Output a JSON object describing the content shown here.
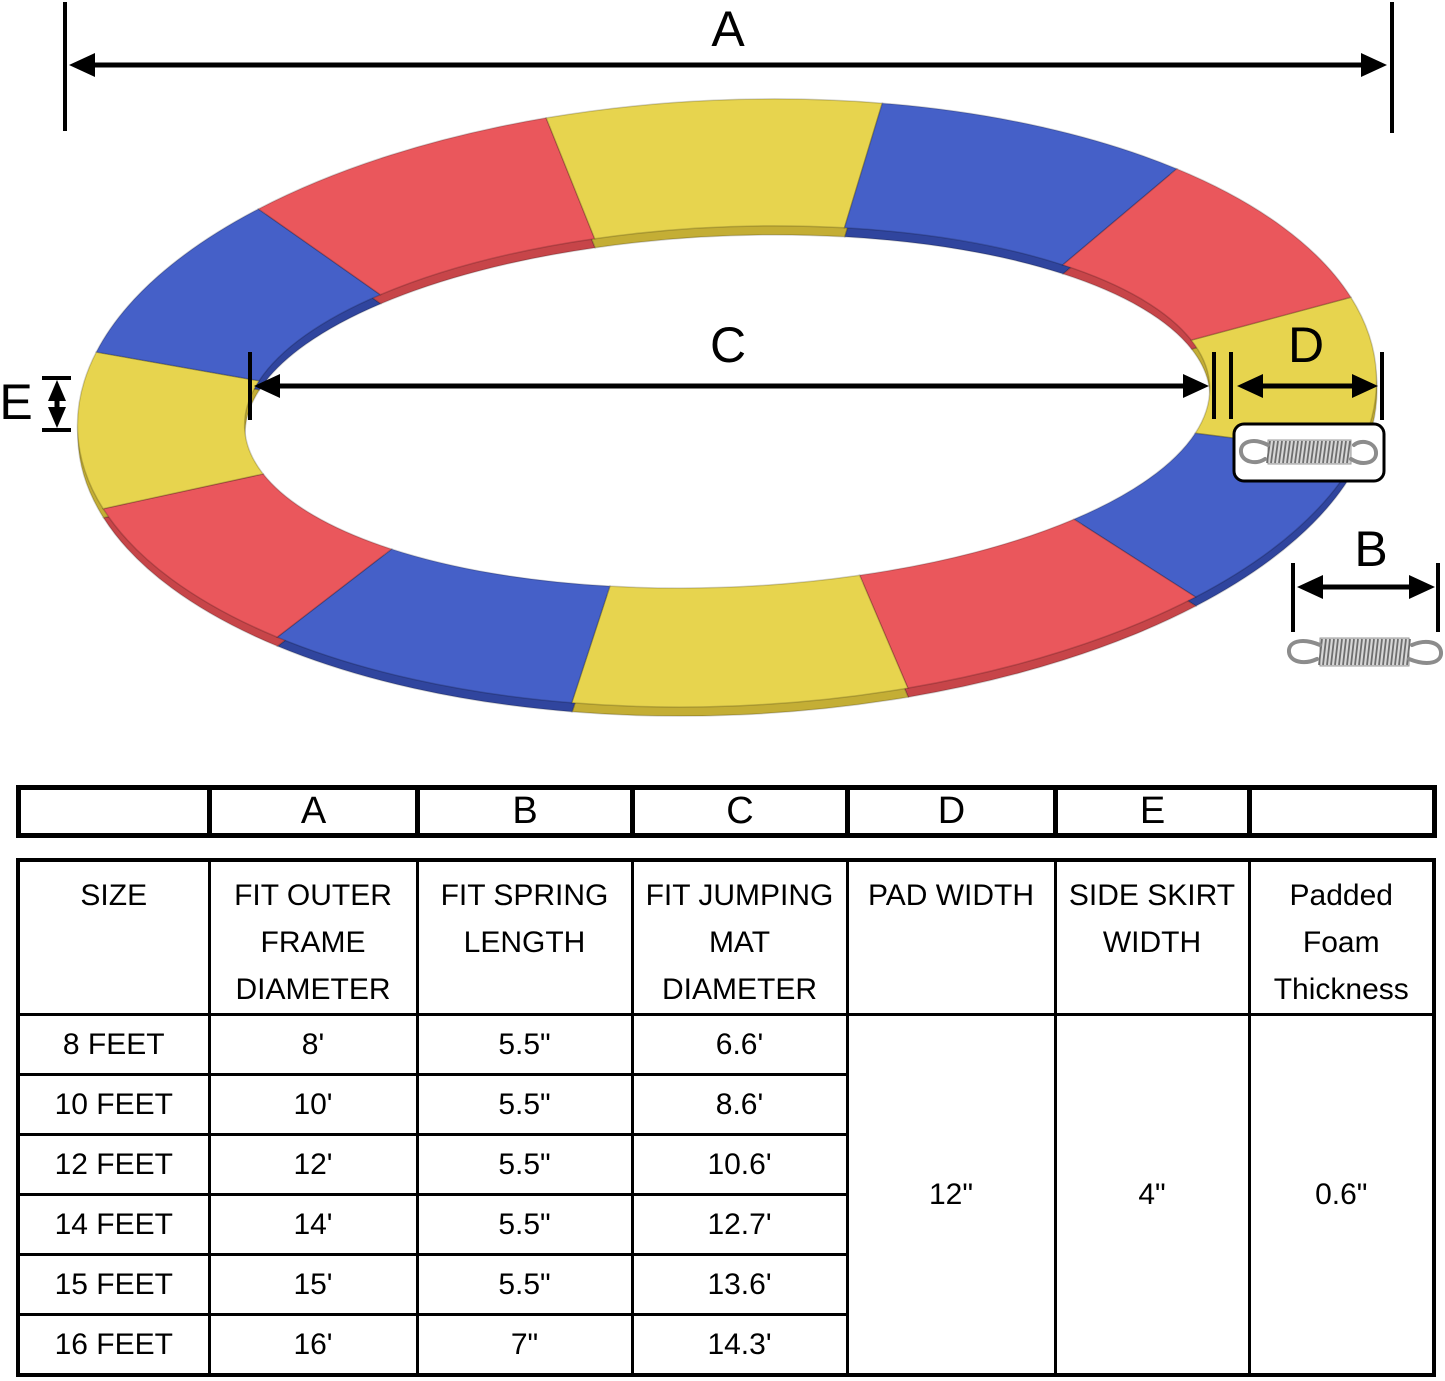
{
  "diagram": {
    "dimension_labels": {
      "a": "A",
      "b": "B",
      "c": "C",
      "d": "D",
      "e": "E"
    },
    "ring_colors": {
      "yellow": "#e7d44e",
      "red": "#ea575c",
      "blue": "#4560c8"
    },
    "ring_shadow_colors": {
      "yellow": "#c4ae35",
      "red": "#c74549",
      "blue": "#30459e"
    },
    "spring_colors": {
      "hook": "#8c8c8c",
      "coil_base": "#d7d7d7",
      "coil_wire": "#6e6e6e"
    },
    "segment_pattern": [
      "yellow",
      "blue",
      "red",
      "yellow",
      "blue",
      "red",
      "yellow",
      "blue",
      "red",
      "yellow",
      "blue",
      "red"
    ]
  },
  "table": {
    "letter_row": [
      "",
      "A",
      "B",
      "C",
      "D",
      "E",
      ""
    ],
    "headers": {
      "size": "SIZE",
      "a": [
        "FIT OUTER",
        "FRAME",
        "DIAMETER"
      ],
      "b": [
        "FIT SPRING",
        "LENGTH"
      ],
      "c": [
        "FIT JUMPING",
        "MAT",
        "DIAMETER"
      ],
      "d": "PAD WIDTH",
      "e": [
        "SIDE SKIRT",
        "WIDTH"
      ],
      "f": [
        "Padded",
        "Foam",
        "Thickness"
      ]
    },
    "rows": [
      {
        "size": "8 FEET",
        "a": "8'",
        "b": "5.5\"",
        "c": "6.6'"
      },
      {
        "size": "10 FEET",
        "a": "10'",
        "b": "5.5\"",
        "c": "8.6'"
      },
      {
        "size": "12 FEET",
        "a": "12'",
        "b": "5.5\"",
        "c": "10.6'"
      },
      {
        "size": "14 FEET",
        "a": "14'",
        "b": "5.5\"",
        "c": "12.7'"
      },
      {
        "size": "15 FEET",
        "a": "15'",
        "b": "5.5\"",
        "c": "13.6'"
      },
      {
        "size": "16 FEET",
        "a": "16'",
        "b": "7\"",
        "c": "14.3'"
      }
    ],
    "merged": {
      "pad_width": "12\"",
      "side_skirt_width": "4\"",
      "foam_thickness": "0.6\""
    }
  }
}
